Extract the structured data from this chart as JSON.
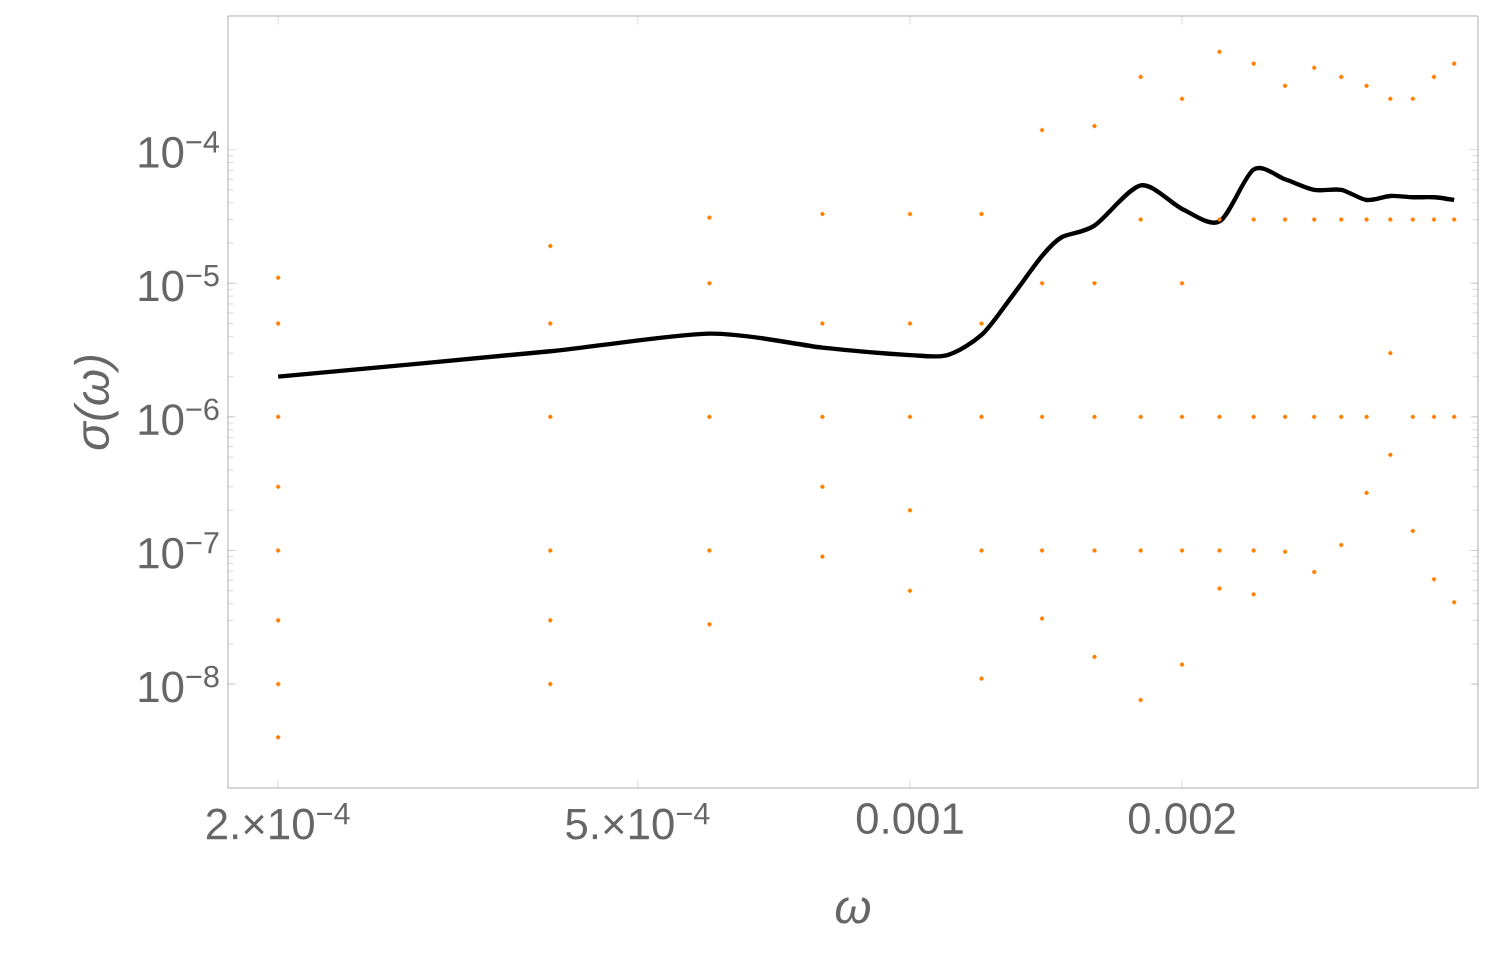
{
  "chart_data": {
    "type": "scatter",
    "xlabel": "ω",
    "ylabel": "σ(ω)",
    "log": "xy",
    "xlim": [
      0.000176,
      0.00425
    ],
    "ylim": [
      1.67e-09,
      0.001
    ],
    "xticks": [
      {
        "value": 0.0002,
        "label": "2.×10$^{−4}$"
      },
      {
        "value": 0.0005,
        "label": "5.×10$^{−4}$"
      },
      0.001,
      0.002
    ],
    "yticks": [
      {
        "value": 1e-08,
        "label": "10$^{−8}$"
      },
      {
        "value": 1e-07,
        "label": "10$^{−7}$"
      },
      {
        "value": 1e-06,
        "label": "10$^{−6}$"
      },
      {
        "value": 1e-05,
        "label": "10$^{−5}$"
      },
      {
        "value": 0.0001,
        "label": "10$^{−4}$"
      }
    ],
    "grid": false,
    "series": [
      {
        "marker": "circle",
        "color": "#ff8000",
        "x": [
          0.0002,
          0.0002,
          0.0002,
          0.0002,
          0.0002,
          0.0002,
          0.0002,
          0.0002,
          0.0004,
          0.0004,
          0.0004,
          0.0004,
          0.0004,
          0.0004,
          0.0006,
          0.0006,
          0.0006,
          0.0006,
          0.0006,
          0.0008,
          0.0008,
          0.0008,
          0.0008,
          0.0008,
          0.001,
          0.001,
          0.001,
          0.001,
          0.001,
          0.0012,
          0.0012,
          0.0012,
          0.0012,
          0.0012,
          0.0014,
          0.0014,
          0.0014,
          0.0014,
          0.0014,
          0.0016,
          0.0016,
          0.0016,
          0.0016,
          0.0016,
          0.0018,
          0.0018,
          0.0018,
          0.0018,
          0.0018,
          0.002,
          0.002,
          0.002,
          0.002,
          0.002,
          0.0022,
          0.0022,
          0.0022,
          0.0022,
          0.0022,
          0.0024,
          0.0024,
          0.0024,
          0.0024,
          0.0024,
          0.0026,
          0.0026,
          0.0026,
          0.0026,
          0.0028,
          0.0028,
          0.0028,
          0.0028,
          0.003,
          0.003,
          0.003,
          0.003,
          0.0032,
          0.0032,
          0.0032,
          0.0032,
          0.0034,
          0.0034,
          0.0034,
          0.0034,
          0.0036,
          0.0036,
          0.0036,
          0.0036,
          0.0038,
          0.0038,
          0.0038,
          0.0038,
          0.004,
          0.004,
          0.004,
          0.004
        ],
        "values": [
          1.1e-05,
          5e-06,
          1e-06,
          3e-07,
          1e-07,
          3e-08,
          1e-08,
          4e-09,
          1.9e-05,
          5e-06,
          1e-06,
          1e-07,
          3e-08,
          1e-08,
          3.1e-05,
          1e-05,
          1e-06,
          1e-07,
          2.8e-08,
          3.3e-05,
          5e-06,
          1e-06,
          3e-07,
          9e-08,
          3.3e-05,
          5e-06,
          1e-06,
          2e-07,
          5e-08,
          3.3e-05,
          5e-06,
          1e-06,
          1e-07,
          1.1e-08,
          0.00014,
          1e-05,
          1e-06,
          1e-07,
          3.1e-08,
          0.00015,
          1e-05,
          1e-06,
          1e-07,
          1.6e-08,
          0.00035,
          3e-05,
          1e-06,
          1e-07,
          7.6e-09,
          0.00024,
          1e-05,
          1e-06,
          1e-07,
          1.4e-08,
          0.00054,
          3e-05,
          1e-06,
          1e-07,
          5.2e-08,
          0.00044,
          3e-05,
          1e-06,
          1e-07,
          4.7e-08,
          0.0003,
          3e-05,
          1e-06,
          9.8e-08,
          0.00041,
          3e-05,
          1e-06,
          6.9e-08,
          0.00035,
          3e-05,
          1e-06,
          1.1e-07,
          0.0003,
          3e-05,
          1e-06,
          2.7e-07,
          0.00024,
          3e-05,
          3e-06,
          5.2e-07,
          0.00024,
          3e-05,
          1e-06,
          1.4e-07,
          0.00035,
          3e-05,
          1e-06,
          6.1e-08,
          0.00044,
          3e-05,
          1e-06,
          4.1e-08
        ]
      },
      {
        "type": "line",
        "marker": "none",
        "color": "#000000",
        "x": [
          0.0002,
          0.0004,
          0.0006,
          0.0008,
          0.001,
          0.0011,
          0.0012,
          0.00129,
          0.0014,
          0.00147,
          0.0016,
          0.0018,
          0.002,
          0.0022,
          0.0024,
          0.0026,
          0.0028,
          0.003,
          0.0032,
          0.0034,
          0.0036,
          0.0038,
          0.004
        ],
        "values": [
          2e-06,
          3.1e-06,
          4.2e-06,
          3.3e-06,
          2.9e-06,
          2.9e-06,
          4.1e-06,
          7.6e-06,
          1.6e-05,
          2.2e-05,
          2.7e-05,
          5.4e-05,
          3.6e-05,
          2.9e-05,
          7.1e-05,
          6e-05,
          5e-05,
          5e-05,
          4.2e-05,
          4.5e-05,
          4.4e-05,
          4.4e-05,
          4.2e-05
        ]
      }
    ]
  }
}
